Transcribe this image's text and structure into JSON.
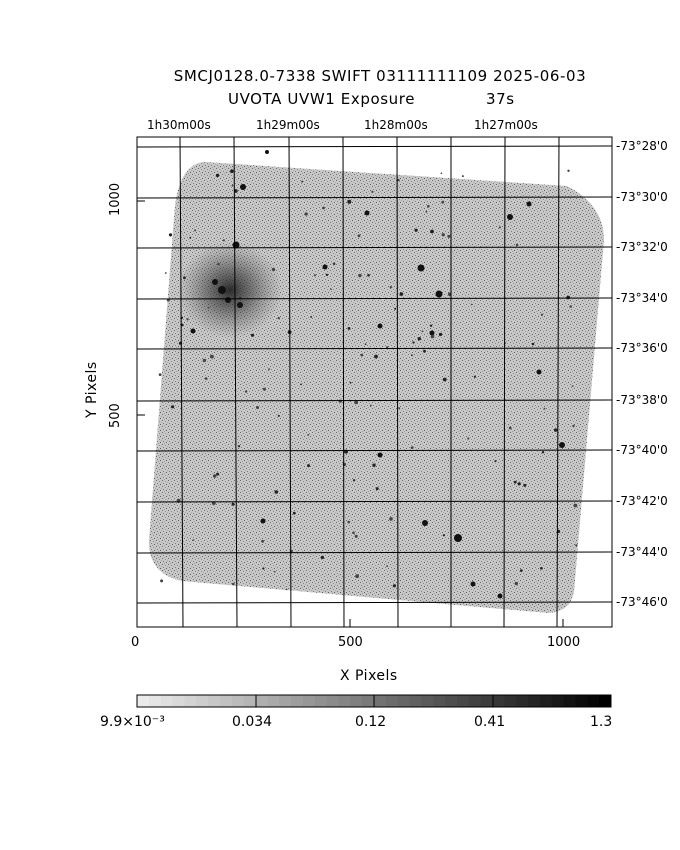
{
  "header": {
    "line1": "SMCJ0128.0-7338 SWIFT 03111111109 2025-06-03",
    "line2_left": "UVOTA UVW1 Exposure",
    "line2_right": "37s"
  },
  "ra_labels": [
    "1h30m00s",
    "1h29m00s",
    "1h28m00s",
    "1h27m00s"
  ],
  "dec_labels": [
    "-73°28'0",
    "-73°30'0",
    "-73°32'0",
    "-73°34'0",
    "-73°36'0",
    "-73°38'0",
    "-73°40'0",
    "-73°42'0",
    "-73°44'0",
    "-73°46'0"
  ],
  "colorbar": {
    "labels": [
      "9.9×10⁻³",
      "0.034",
      "0.12",
      "0.41",
      "1.3"
    ]
  },
  "chart_data": {
    "type": "heatmap",
    "title": "SMCJ0128.0-7338 SWIFT 03111111109 2025-06-03 UVOTA UVW1 Exposure 37s",
    "xlabel": "X Pixels",
    "ylabel": "Y Pixels",
    "xlim": [
      0,
      1115
    ],
    "ylim": [
      0,
      1150
    ],
    "x_ticks": [
      0,
      500,
      1000
    ],
    "x_tick_labels": [
      "0",
      "500",
      "1000"
    ],
    "y_ticks": [
      500,
      1000
    ],
    "y_tick_labels": [
      "500",
      "1000"
    ],
    "ra_axis": [
      "1h30m00s",
      "1h29m00s",
      "1h28m00s",
      "1h27m00s"
    ],
    "dec_axis": [
      "-73°28'0",
      "-73°30'0",
      "-73°32'0",
      "-73°34'0",
      "-73°36'0",
      "-73°38'0",
      "-73°40'0",
      "-73°42'0",
      "-73°44'0",
      "-73°46'0"
    ],
    "colorbar_scale": "log",
    "colorbar_range": [
      0.0099,
      1.3
    ],
    "colorbar_ticks": [
      "9.9×10⁻³",
      "0.034",
      "0.12",
      "0.41",
      "1.3"
    ],
    "colormap": "gray-inverted",
    "grid": true
  }
}
